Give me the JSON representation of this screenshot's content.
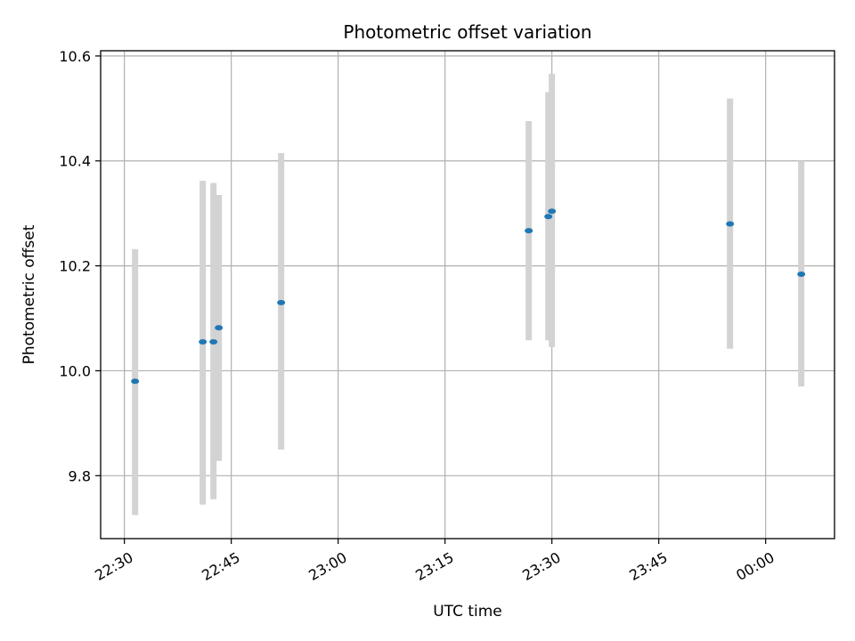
{
  "chart_data": {
    "type": "scatter",
    "title": "Photometric offset variation",
    "xlabel": "UTC time",
    "ylabel": "Photometric offset",
    "x_ticks": [
      "22:30",
      "22:45",
      "23:00",
      "23:15",
      "23:30",
      "23:45",
      "00:00"
    ],
    "y_ticks": [
      "9.8",
      "10.0",
      "10.2",
      "10.4",
      "10.6"
    ],
    "ylim": [
      9.68,
      10.61
    ],
    "xlim": [
      "22:26:40",
      "00:09:40"
    ],
    "grid": true,
    "colors": {
      "point": "#1f77b4",
      "errorbar": "#d3d3d3",
      "grid": "#b0b0b0"
    },
    "points": [
      {
        "time": "22:31:30",
        "offset": 9.98,
        "lower": 9.725,
        "upper": 10.232
      },
      {
        "time": "22:41:00",
        "offset": 10.055,
        "lower": 9.745,
        "upper": 10.362
      },
      {
        "time": "22:42:30",
        "offset": 10.055,
        "lower": 9.755,
        "upper": 10.358
      },
      {
        "time": "22:43:15",
        "offset": 10.082,
        "lower": 9.828,
        "upper": 10.335
      },
      {
        "time": "22:52:00",
        "offset": 10.13,
        "lower": 9.85,
        "upper": 10.415
      },
      {
        "time": "23:26:45",
        "offset": 10.267,
        "lower": 10.058,
        "upper": 10.476
      },
      {
        "time": "23:29:30",
        "offset": 10.294,
        "lower": 10.058,
        "upper": 10.531
      },
      {
        "time": "23:30:00",
        "offset": 10.304,
        "lower": 10.045,
        "upper": 10.566
      },
      {
        "time": "23:55:00",
        "offset": 10.28,
        "lower": 10.042,
        "upper": 10.519
      },
      {
        "time": "00:05:00",
        "offset": 10.184,
        "lower": 9.97,
        "upper": 10.4
      }
    ]
  }
}
